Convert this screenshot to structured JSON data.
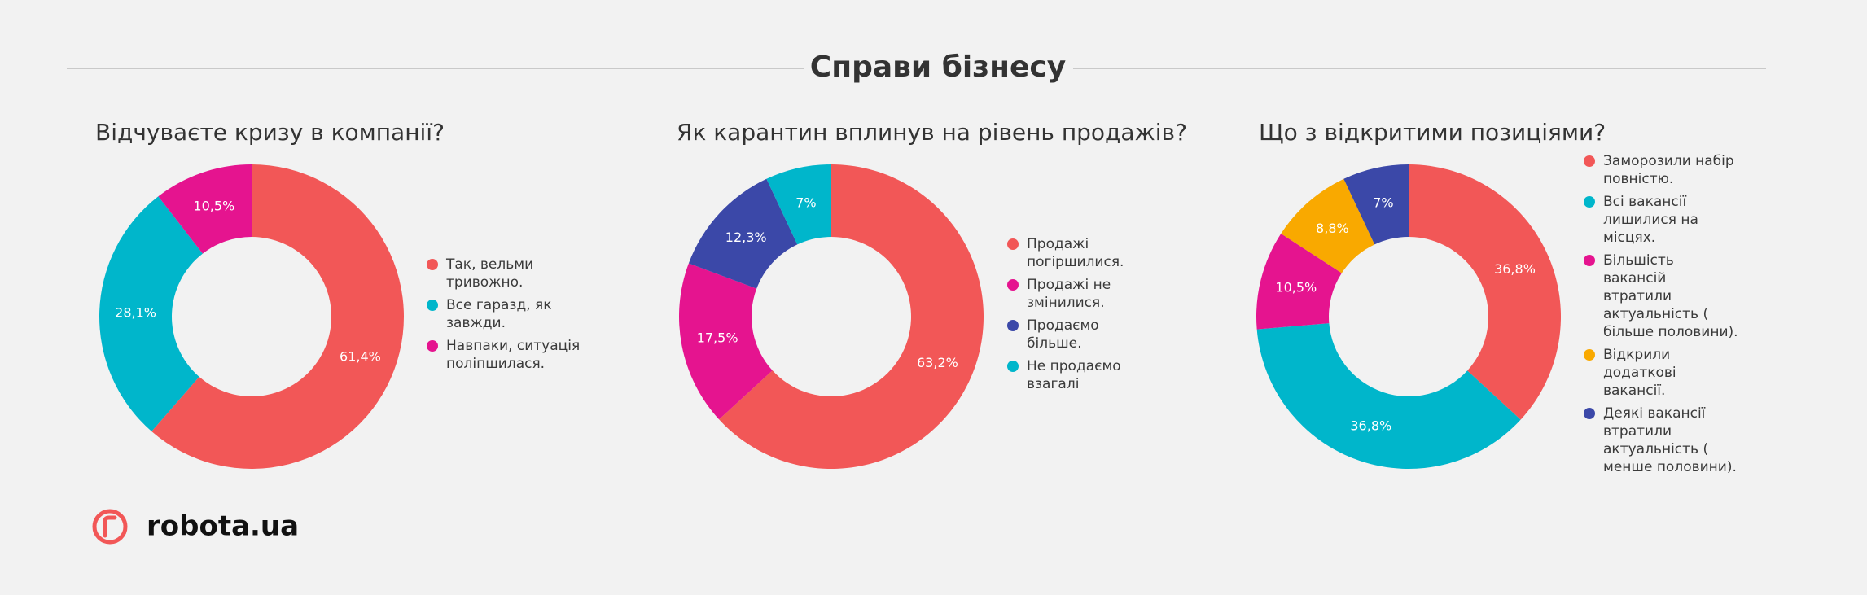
{
  "title": "Справи бізнесу",
  "brand": "robota.ua",
  "chart_data": [
    {
      "type": "donut",
      "title": "Відчуваєте кризу в компанії?",
      "categories": [
        "Так, вельми тривожно.",
        "Все гаразд, як завжди.",
        "Навпаки, ситуація поліпшилася."
      ],
      "values": [
        61.4,
        28.1,
        10.5
      ],
      "value_labels": [
        "61,4%",
        "28,1%",
        "10,5%"
      ],
      "colors": [
        "#f25757",
        "#00b6cb",
        "#e5148f"
      ]
    },
    {
      "type": "donut",
      "title": "Як карантин вплинув на рівень продажів?",
      "categories": [
        "Продажі погіршилися.",
        "Продажі не змінилися.",
        "Продаємо більше.",
        "Не продаємо взагалі"
      ],
      "values": [
        63.2,
        17.5,
        12.3,
        7
      ],
      "value_labels": [
        "63,2%",
        "17,5%",
        "12,3%",
        "7%"
      ],
      "colors": [
        "#f25757",
        "#e5148f",
        "#3b48a8",
        "#00b6cb"
      ]
    },
    {
      "type": "donut",
      "title": "Що з відкритими позиціями?",
      "categories": [
        "Заморозили набір повністю.",
        "Всі вакансії лишилися на місцях.",
        "Більшість вакансій втратили актуальність ( більше половини).",
        "Відкрили додаткові вакансії.",
        "Деякі вакансії втратили актуальність ( менше половини)."
      ],
      "values": [
        36.8,
        36.8,
        10.5,
        8.8,
        7
      ],
      "value_labels": [
        "36,8%",
        "36,8%",
        "10,5%",
        "8,8%",
        "7%"
      ],
      "colors": [
        "#f25757",
        "#00b6cb",
        "#e5148f",
        "#f9a900",
        "#3b48a8"
      ]
    }
  ]
}
